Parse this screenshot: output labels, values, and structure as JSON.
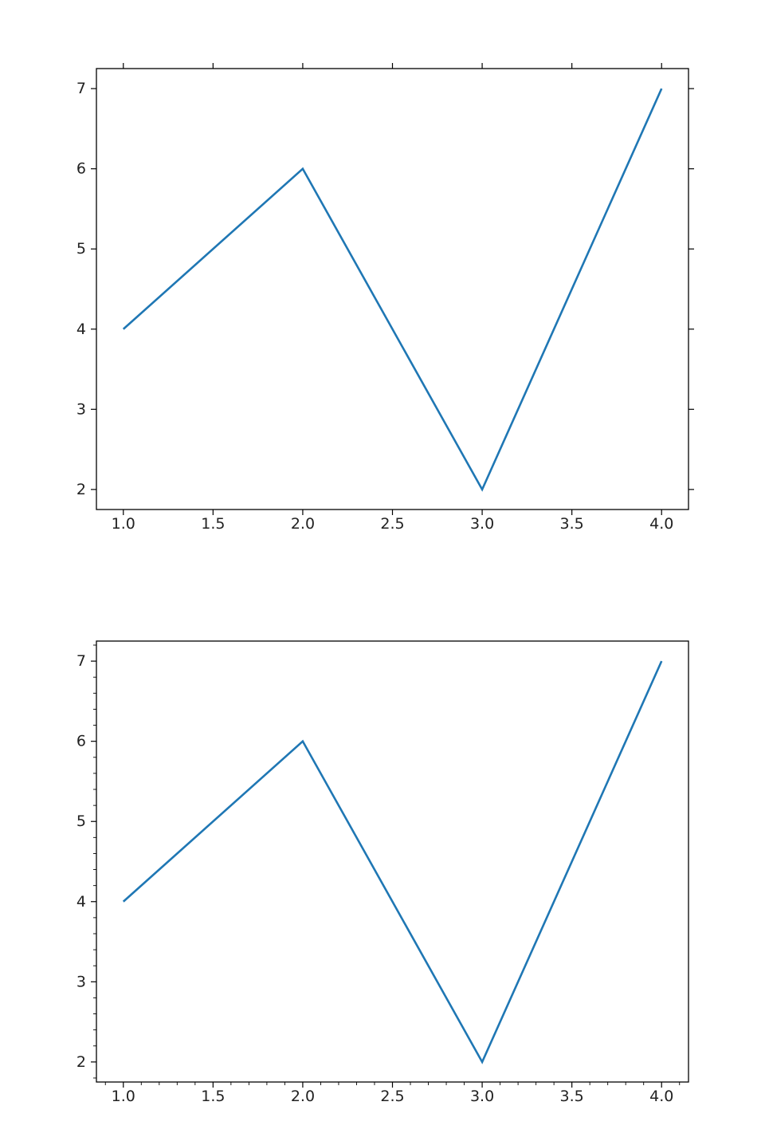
{
  "chart_data": [
    {
      "type": "line",
      "title": "",
      "xlabel": "",
      "ylabel": "",
      "xlim": [
        0.85,
        4.15
      ],
      "ylim": [
        1.75,
        7.25
      ],
      "x_ticks": [
        1.0,
        1.5,
        2.0,
        2.5,
        3.0,
        3.5,
        4.0
      ],
      "x_tick_labels": [
        "1.0",
        "1.5",
        "2.0",
        "2.5",
        "3.0",
        "3.5",
        "4.0"
      ],
      "y_ticks": [
        2,
        3,
        4,
        5,
        6,
        7
      ],
      "y_tick_labels": [
        "2",
        "3",
        "4",
        "5",
        "6",
        "7"
      ],
      "ticks_on_all_sides": true,
      "minor_ticks": false,
      "grid": false,
      "series": [
        {
          "x": [
            1,
            2,
            3,
            4
          ],
          "y": [
            4,
            6,
            2,
            7
          ],
          "color": "#1f77b4"
        }
      ]
    },
    {
      "type": "line",
      "title": "",
      "xlabel": "",
      "ylabel": "",
      "xlim": [
        0.85,
        4.15
      ],
      "ylim": [
        1.75,
        7.25
      ],
      "x_ticks": [
        1.0,
        1.5,
        2.0,
        2.5,
        3.0,
        3.5,
        4.0
      ],
      "x_tick_labels": [
        "1.0",
        "1.5",
        "2.0",
        "2.5",
        "3.0",
        "3.5",
        "4.0"
      ],
      "y_ticks": [
        2,
        3,
        4,
        5,
        6,
        7
      ],
      "y_tick_labels": [
        "2",
        "3",
        "4",
        "5",
        "6",
        "7"
      ],
      "ticks_on_all_sides": false,
      "minor_ticks": true,
      "minor_x_step": 0.1,
      "minor_y_step": 0.2,
      "grid": false,
      "series": [
        {
          "x": [
            1,
            2,
            3,
            4
          ],
          "y": [
            4,
            6,
            2,
            7
          ],
          "color": "#1f77b4"
        }
      ]
    }
  ]
}
